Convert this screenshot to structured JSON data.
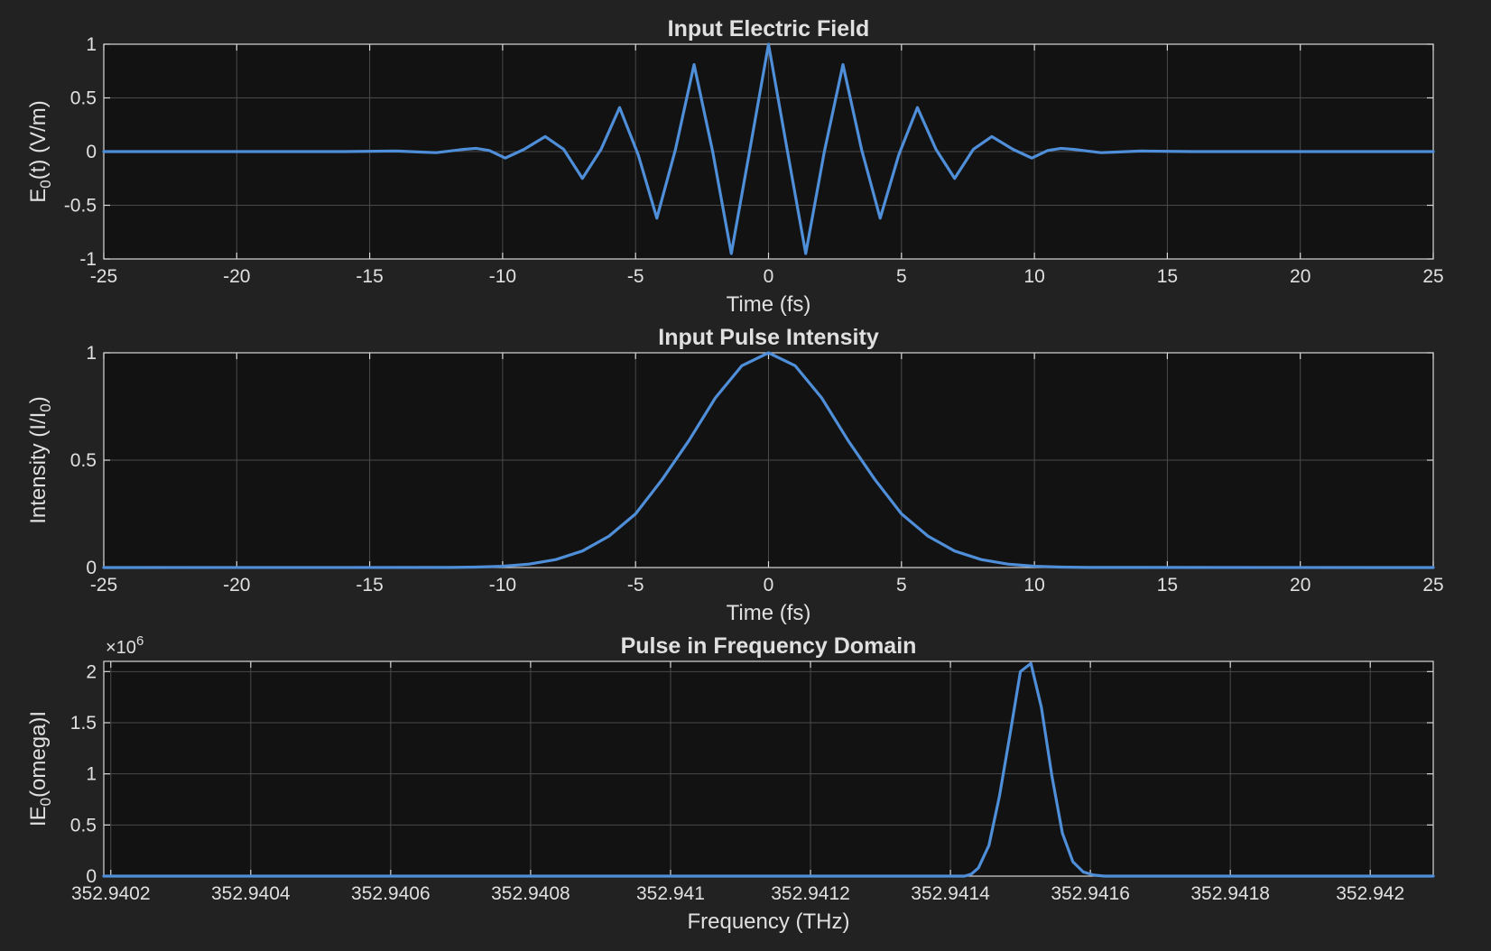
{
  "chart_data": [
    {
      "type": "line",
      "title": "Input Electric Field",
      "xlabel": "Time (fs)",
      "ylabel": {
        "pre": "E",
        "sub": "0",
        "post": "(t)  (V/m)"
      },
      "xlim": [
        -25,
        25
      ],
      "ylim": [
        -1,
        1
      ],
      "xticks": [
        -25,
        -20,
        -15,
        -10,
        -5,
        0,
        5,
        10,
        15,
        20,
        25
      ],
      "xtick_labels": [
        "-25",
        "-20",
        "-15",
        "-10",
        "-5",
        "0",
        "5",
        "10",
        "15",
        "20",
        "25"
      ],
      "yticks": [
        -1,
        -0.5,
        0,
        0.5,
        1
      ],
      "ytick_labels": [
        "-1",
        "-0.5",
        "0",
        "0.5",
        "1"
      ],
      "grid": true,
      "series": [
        {
          "x": [
            -25,
            -16,
            -14,
            -13,
            -12.5,
            -12,
            -11.5,
            -11,
            -10.5,
            -9.9,
            -9.2,
            -8.4,
            -7.7,
            -7.0,
            -6.3,
            -5.6,
            -4.9,
            -4.2,
            -3.5,
            -2.8,
            -2.1,
            -1.4,
            -0.7,
            0,
            0.7,
            1.4,
            2.1,
            2.8,
            3.5,
            4.2,
            4.9,
            5.6,
            6.3,
            7.0,
            7.7,
            8.4,
            9.2,
            9.9,
            10.5,
            11.0,
            11.5,
            12.0,
            12.5,
            13.0,
            14.0,
            16.0,
            25
          ],
          "y": [
            0,
            0,
            0.005,
            -0.005,
            -0.01,
            0.005,
            0.02,
            0.03,
            0.01,
            -0.06,
            0.02,
            0.14,
            0.02,
            -0.25,
            0.02,
            0.41,
            -0.03,
            -0.62,
            0.02,
            0.81,
            0.0,
            -0.95,
            0.02,
            1.0,
            0.02,
            -0.95,
            0.0,
            0.81,
            0.02,
            -0.62,
            -0.03,
            0.41,
            0.02,
            -0.25,
            0.02,
            0.14,
            0.02,
            -0.06,
            0.01,
            0.03,
            0.02,
            0.005,
            -0.01,
            -0.005,
            0.005,
            0,
            0
          ]
        }
      ]
    },
    {
      "type": "line",
      "title": "Input Pulse Intensity",
      "xlabel": "Time (fs)",
      "ylabel": {
        "pre": "Intensity  (I/I",
        "sub": "0",
        "post": ")"
      },
      "xlim": [
        -25,
        25
      ],
      "ylim": [
        0,
        1
      ],
      "xticks": [
        -25,
        -20,
        -15,
        -10,
        -5,
        0,
        5,
        10,
        15,
        20,
        25
      ],
      "xtick_labels": [
        "-25",
        "-20",
        "-15",
        "-10",
        "-5",
        "0",
        "5",
        "10",
        "15",
        "20",
        "25"
      ],
      "yticks": [
        0,
        0.5,
        1
      ],
      "ytick_labels": [
        "0",
        "0.5",
        "1"
      ],
      "grid": true,
      "series": [
        {
          "x": [
            -25,
            -12,
            -11,
            -10,
            -9,
            -8,
            -7,
            -6,
            -5,
            -4,
            -3,
            -2,
            -1,
            0,
            1,
            2,
            3,
            4,
            5,
            6,
            7,
            8,
            9,
            10,
            11,
            12,
            25
          ],
          "y": [
            0,
            0.0005,
            0.002,
            0.006,
            0.016,
            0.037,
            0.077,
            0.146,
            0.25,
            0.41,
            0.59,
            0.79,
            0.94,
            1.0,
            0.94,
            0.79,
            0.59,
            0.41,
            0.25,
            0.146,
            0.077,
            0.037,
            0.016,
            0.006,
            0.002,
            0.0005,
            0
          ]
        }
      ]
    },
    {
      "type": "line",
      "title": "Pulse in Frequency Domain",
      "xlabel": "Frequency (THz)",
      "ylabel": {
        "pre": "IE",
        "sub": "0",
        "post": "(omega)I"
      },
      "y_exponent": {
        "base": "×10",
        "power": "6"
      },
      "xlim": [
        352.94019,
        352.94209
      ],
      "ylim": [
        0,
        2.1
      ],
      "xticks": [
        352.9402,
        352.9404,
        352.9406,
        352.9408,
        352.941,
        352.9412,
        352.9414,
        352.9416,
        352.9418,
        352.942
      ],
      "xtick_labels": [
        "352.9402",
        "352.9404",
        "352.9406",
        "352.9408",
        "352.941",
        "352.9412",
        "352.9414",
        "352.9416",
        "352.9418",
        "352.942"
      ],
      "yticks": [
        0,
        0.5,
        1,
        1.5,
        2
      ],
      "ytick_labels": [
        "0",
        "0.5",
        "1",
        "1.5",
        "2"
      ],
      "grid": true,
      "series": [
        {
          "x": [
            352.94019,
            352.94142,
            352.94143,
            352.94144,
            352.941455,
            352.94147,
            352.941485,
            352.9415,
            352.941515,
            352.94153,
            352.941545,
            352.94156,
            352.941575,
            352.94159,
            352.941605,
            352.94162,
            352.941635,
            352.94165,
            352.941665,
            352.94168,
            352.94209
          ],
          "y": [
            0,
            0,
            0.02,
            0.08,
            0.3,
            0.78,
            1.38,
            2.0,
            2.08,
            1.65,
            0.98,
            0.42,
            0.14,
            0.04,
            0.01,
            0,
            0,
            0,
            0,
            0,
            0
          ]
        }
      ]
    }
  ],
  "colors": {
    "background": "#222222",
    "axes_background": "#121212",
    "line": "#4f8ed8",
    "grid": "#4a4a4a",
    "text": "#e0e0e0"
  }
}
